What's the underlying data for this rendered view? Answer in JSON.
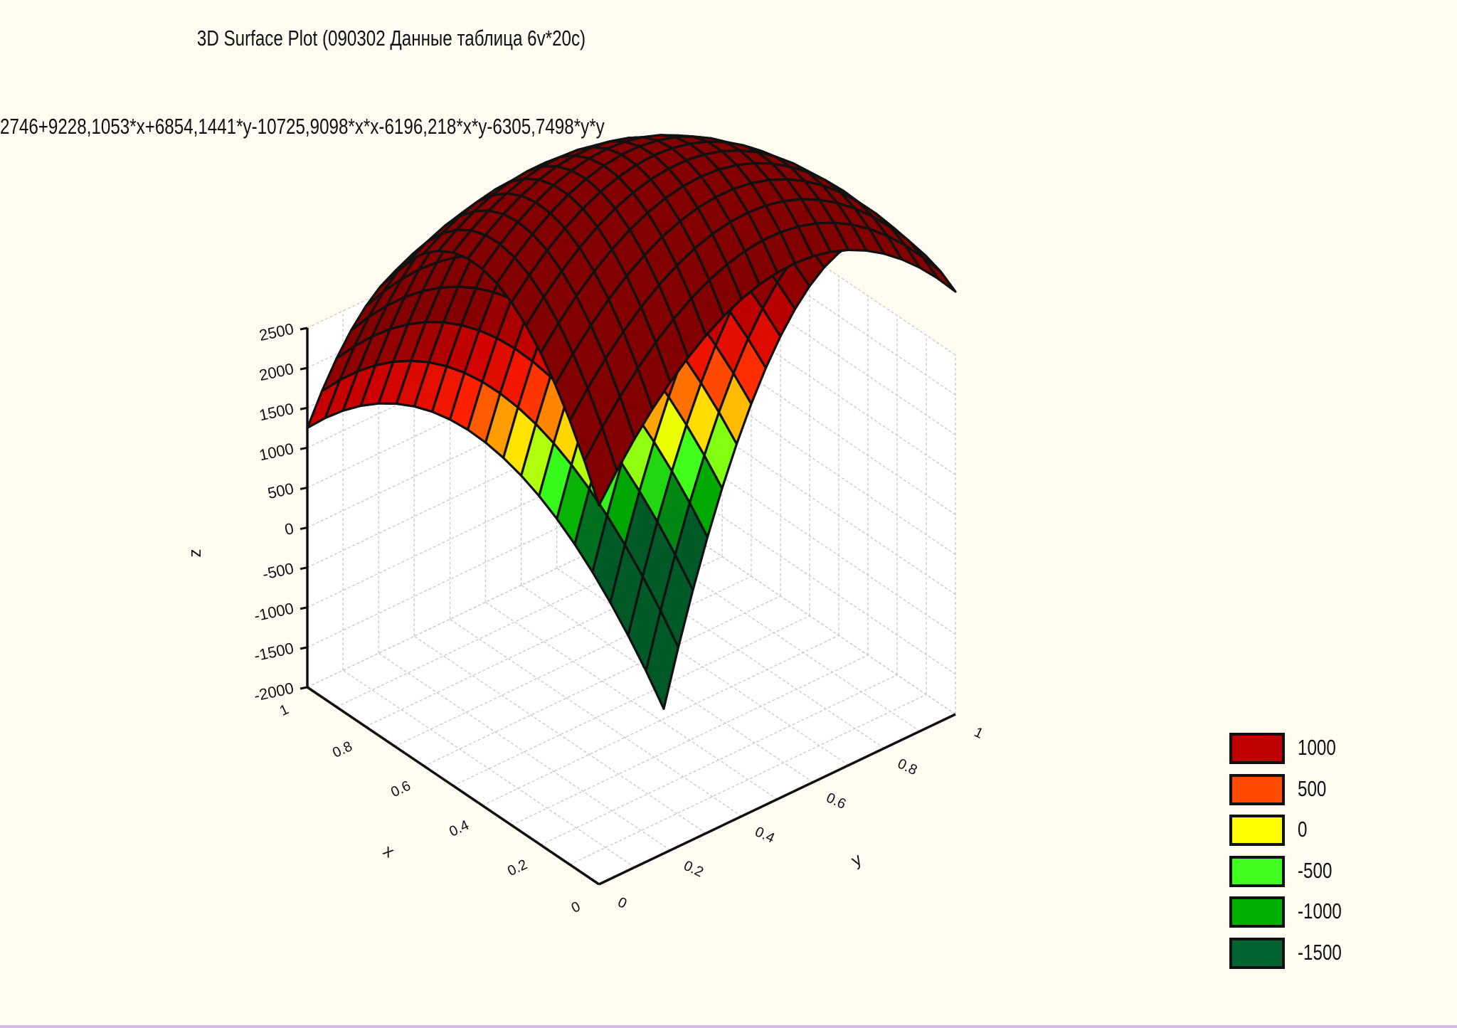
{
  "chart_data": {
    "type": "surface3d",
    "title": "3D Surface Plot (090302 Данные таблица 6v*20c)",
    "equation": "2746+9228,1053*x+6854,1441*y-10725,9098*x*x-6196,218*x*y-6305,7498*y*y",
    "function": {
      "constant": 2746,
      "x": 9228.1053,
      "y": 6854.1441,
      "xx": -10725.9098,
      "xy": -6196.218,
      "yy": -6305.7498
    },
    "x_range": [
      0,
      1
    ],
    "y_range": [
      0,
      1
    ],
    "grid_divisions": 20,
    "z_axis": {
      "label": "z",
      "ticks": [
        -2000,
        -1500,
        -1000,
        -500,
        0,
        500,
        1000,
        1500,
        2000,
        2500
      ],
      "range": [
        -2000,
        2500
      ]
    },
    "x_axis": {
      "label": "x",
      "ticks": [
        0,
        0.2,
        0.4,
        0.6,
        0.8,
        1.0
      ]
    },
    "y_axis": {
      "label": "y",
      "ticks": [
        0,
        0.2,
        0.4,
        0.6,
        0.8,
        1.0
      ]
    },
    "grid": true,
    "legend_position": "bottom-right",
    "legend": [
      {
        "label": "1000",
        "color": "#c00000"
      },
      {
        "label": "500",
        "color": "#ff4a00"
      },
      {
        "label": "0",
        "color": "#ffff00"
      },
      {
        "label": "-500",
        "color": "#40ff20"
      },
      {
        "label": "-1000",
        "color": "#00b000"
      },
      {
        "label": "-1500",
        "color": "#006430"
      }
    ]
  }
}
